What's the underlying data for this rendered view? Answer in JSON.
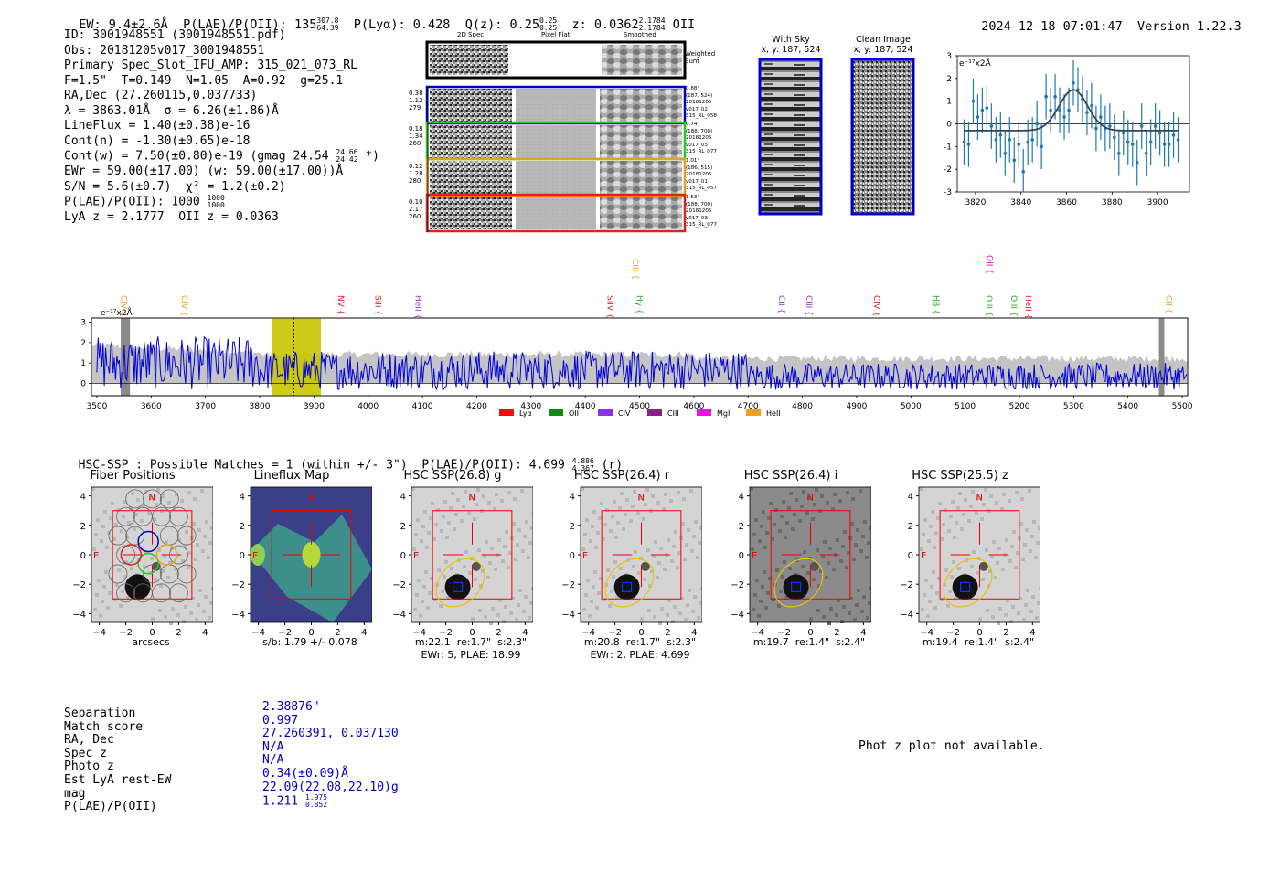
{
  "header": {
    "ew": "EW: 9.4±2.6Å",
    "plae": "P(LAE)/P(OII): 135",
    "plae_hi": "307.8",
    "plae_lo": "64.39",
    "plya": "P(Lyα): 0.428",
    "qz": "Q(z): 0.25",
    "qz_hi": "0.25",
    "qz_lo": "0.25",
    "z": "z: 0.0362",
    "z_hi": "2.1784",
    "z_lo": "2.1784",
    "z_line": "OII",
    "timestamp": "2024-12-18 07:01:47",
    "version": "Version 1.22.3"
  },
  "info": {
    "lines": [
      "ID: 3001948551 (3001948551.pdf)",
      "Obs: 20181205v017_3001948551",
      "Primary Spec_Slot_IFU_AMP: 315_021_073_RL",
      "F=1.5\"  T=0.149  N=1.05  A=0.92  g=25.1",
      "RA,Dec (27.260115,0.037733)",
      "λ = 3863.01Å  σ = 6.26(±1.86)Å",
      "LineFlux = 1.40(±0.38)e-16",
      "Cont(n) = -1.30(±0.65)e-18",
      "Cont(w) = 7.50(±0.80)e-19 (gmag 24.54",
      "EWr = 59.00(±17.00) (w: 59.00(±17.00))Å",
      "S/N = 5.6(±0.7)  χ² = 1.2(±0.2)",
      "P(LAE)/P(OII): 1000",
      "LyA z = 2.1777  OII z = 0.0363"
    ],
    "gmag_hi": "24.66",
    "gmag_lo": "24.42",
    "gmag_tail": "*)",
    "plae_hi": "1000",
    "plae_lo": "1000"
  },
  "cutouts": {
    "col_labels": [
      "2D Spec",
      "Pixel Flat",
      "Smoothed"
    ],
    "weighted_sum_label": "Weighted Sum",
    "rows": [
      {
        "left": [
          "0.38",
          "1.12",
          "279"
        ],
        "right": [
          "0.88\"",
          "(187, 524)",
          "20181205",
          "v017_02",
          "315_RL_058"
        ],
        "color": "#0000cc"
      },
      {
        "left": [
          "0.18",
          "1.34",
          "260"
        ],
        "right": [
          "0.74\"",
          "(188, 700)",
          "20181205",
          "v017_03",
          "315_RL_077"
        ],
        "color": "#22cc22"
      },
      {
        "left": [
          "0.12",
          "1.28",
          "280"
        ],
        "right": [
          "1.01\"",
          "(186, 515)",
          "20181205",
          "v017_01",
          "315_RL_057"
        ],
        "color": "#e8a020"
      },
      {
        "left": [
          "0.10",
          "2.17",
          "260"
        ],
        "right": [
          "1.53\"",
          "(188, 700)",
          "20181205",
          "v017_03",
          "315_RL_077"
        ],
        "color": "#dd2222"
      }
    ]
  },
  "sky": {
    "with_sky_title": "With Sky",
    "with_sky_xy": "x, y: 187, 524",
    "clean_title": "Clean Image",
    "clean_xy": "x, y: 187, 524"
  },
  "chart_data": [
    {
      "type": "scatter",
      "title": "emission line fit",
      "ylabel_annot": "e⁻¹⁷x2Å",
      "xlim": [
        3812,
        3914
      ],
      "ylim": [
        -3,
        3
      ],
      "xticks": [
        "3820",
        "3840",
        "3860",
        "3880",
        "3900"
      ],
      "yticks": [
        "3",
        "2",
        "1",
        "0",
        "-1",
        "-2",
        "-3"
      ],
      "x": [
        3815,
        3817,
        3819,
        3821,
        3823,
        3825,
        3827,
        3829,
        3831,
        3833,
        3835,
        3837,
        3839,
        3841,
        3843,
        3845,
        3847,
        3849,
        3851,
        3853,
        3855,
        3857,
        3859,
        3861,
        3863,
        3865,
        3867,
        3869,
        3871,
        3873,
        3875,
        3877,
        3879,
        3881,
        3883,
        3885,
        3887,
        3889,
        3891,
        3893,
        3895,
        3897,
        3899,
        3901,
        3903,
        3905,
        3907,
        3909
      ],
      "values": [
        -0.8,
        -0.9,
        1.0,
        0.3,
        0.6,
        0.7,
        -0.1,
        -0.7,
        -0.5,
        -1.3,
        -0.7,
        -1.6,
        -0.9,
        -2.1,
        -0.8,
        -0.7,
        0.0,
        -1.0,
        1.2,
        0.6,
        1.2,
        0.6,
        0.3,
        0.6,
        1.8,
        1.5,
        1.1,
        0.5,
        0.8,
        -0.2,
        0.3,
        -0.2,
        -0.1,
        -0.6,
        -1.3,
        -0.4,
        -0.8,
        -0.9,
        -1.7,
        -0.1,
        -1.3,
        -0.8,
        -0.1,
        -0.4,
        -0.9,
        -0.9,
        -0.5,
        -0.7
      ],
      "errors": [
        1.0,
        1.0,
        1.0,
        1.0,
        1.0,
        1.0,
        1.0,
        1.0,
        1.0,
        1.0,
        1.0,
        1.0,
        1.0,
        1.0,
        1.0,
        1.0,
        1.0,
        1.0,
        1.0,
        1.0,
        1.0,
        1.0,
        1.0,
        1.0,
        1.0,
        1.0,
        1.0,
        1.0,
        1.0,
        1.0,
        1.0,
        1.0,
        1.0,
        1.0,
        1.0,
        1.0,
        1.0,
        1.0,
        1.0,
        1.0,
        1.0,
        1.0,
        1.0,
        1.0,
        1.0,
        1.0,
        1.0,
        1.0
      ],
      "model": {
        "center": 3863.0,
        "sigma": 6.26,
        "amp": 1.8,
        "base": -0.3
      }
    },
    {
      "type": "line",
      "title": "full spectrum",
      "ylabel_annot": "e⁻¹⁷x2Å",
      "xlim": [
        3490,
        5510
      ],
      "ylim": [
        -0.6,
        3.2
      ],
      "xticks": [
        "3500",
        "3600",
        "3700",
        "3800",
        "3900",
        "4000",
        "4100",
        "4200",
        "4300",
        "4400",
        "4500",
        "4600",
        "4700",
        "4800",
        "4900",
        "5000",
        "5100",
        "5200",
        "5300",
        "5400",
        "5500"
      ],
      "yticks": [
        "3",
        "2",
        "1",
        "0"
      ],
      "highlight": [
        3822,
        3913
      ],
      "marker_x": 3863,
      "gray_bands": [
        [
          3544,
          3561
        ],
        [
          5457,
          5467
        ]
      ],
      "lines": [
        {
          "name": "CIV",
          "x": 3540,
          "color": "#f0a020"
        },
        {
          "name": "CIV",
          "x": 3540,
          "color": "#f0a020"
        },
        {
          "name": "CIV",
          "x": 3652,
          "color": "#f0a020"
        },
        {
          "name": "NV",
          "x": 3940,
          "color": "#dd2222"
        },
        {
          "name": "SiII",
          "x": 4008,
          "color": "#dd2222"
        },
        {
          "name": "HeII",
          "x": 4082,
          "color": "#9933cc"
        },
        {
          "name": "SiIV",
          "x": 4436,
          "color": "#dd2222"
        },
        {
          "name": "CIII",
          "x": 4482,
          "color": "#f0a020"
        },
        {
          "name": "Hγ",
          "x": 4490,
          "color": "#22aa22"
        },
        {
          "name": "CII",
          "x": 4752,
          "color": "#9933cc"
        },
        {
          "name": "CIII",
          "x": 4802,
          "color": "#9933cc"
        },
        {
          "name": "CIV",
          "x": 4927,
          "color": "#dd2222"
        },
        {
          "name": "Hβ",
          "x": 5037,
          "color": "#22aa22"
        },
        {
          "name": "OIII",
          "x": 5134,
          "color": "#22aa22"
        },
        {
          "name": "OII",
          "x": 5135,
          "color": "#dd00dd"
        },
        {
          "name": "OIII",
          "x": 5180,
          "color": "#22aa22"
        },
        {
          "name": "HeII",
          "x": 5207,
          "color": "#dd2222"
        },
        {
          "name": "CII",
          "x": 5465,
          "color": "#f0a020"
        }
      ],
      "legend": [
        {
          "name": "Lyα",
          "color": "#ee1111"
        },
        {
          "name": "OII",
          "color": "#118811"
        },
        {
          "name": "CIV",
          "color": "#8833ee"
        },
        {
          "name": "CIII",
          "color": "#882288"
        },
        {
          "name": "MgII",
          "color": "#ee11ee"
        },
        {
          "name": "HeII",
          "color": "#f0a020"
        }
      ]
    }
  ],
  "hsc": {
    "summary": "HSC-SSP : Possible Matches = 1 (within +/- 3\")  P(LAE)/P(OII): 4.699",
    "summary_hi": "4.886",
    "summary_lo": "4.367",
    "summary_tail": "(r)",
    "panels": [
      {
        "title": "Fiber Positions",
        "caption1": "arcsecs",
        "caption2": ""
      },
      {
        "title": "Lineflux Map",
        "caption1": "s/b: 1.79 +/- 0.078",
        "caption2": ""
      },
      {
        "title": "HSC SSP(26.8) g",
        "caption1": "m:22.1  re:1.7\"  s:2.3\"",
        "caption2": "EWr: 5, PLAE: 18.99"
      },
      {
        "title": "HSC SSP(26.4) r",
        "caption1": "m:20.8  re:1.7\"  s:2.3\"",
        "caption2": "EWr: 2, PLAE: 4.699"
      },
      {
        "title": "HSC SSP(26.4) i",
        "caption1": "m:19.7  re:1.4\"  s:2.4\"",
        "caption2": ""
      },
      {
        "title": "HSC SSP(25.5) z",
        "caption1": "m:19.4  re:1.4\"  s:2.4\"",
        "caption2": ""
      }
    ],
    "axis_ticks": [
      "4",
      "2",
      "0",
      "-2",
      "-4"
    ],
    "x_ticks": [
      "−4",
      "−2",
      "0",
      "2",
      "4"
    ],
    "compass_n": "N",
    "compass_e": "E"
  },
  "match": {
    "labels": [
      "Separation",
      "Match score",
      "RA, Dec",
      "Spec z",
      "Photo z",
      "Est LyA rest-EW",
      "mag",
      "P(LAE)/P(OII)"
    ],
    "values": [
      "2.38876\"",
      "0.997",
      "27.260391, 0.037130",
      "N/A",
      "N/A",
      "0.34(±0.09)Å",
      "22.09(22.08,22.10)g",
      "1.211"
    ],
    "plae_hi": "1.975",
    "plae_lo": "0.852",
    "photz_note": "Phot z plot not available."
  }
}
